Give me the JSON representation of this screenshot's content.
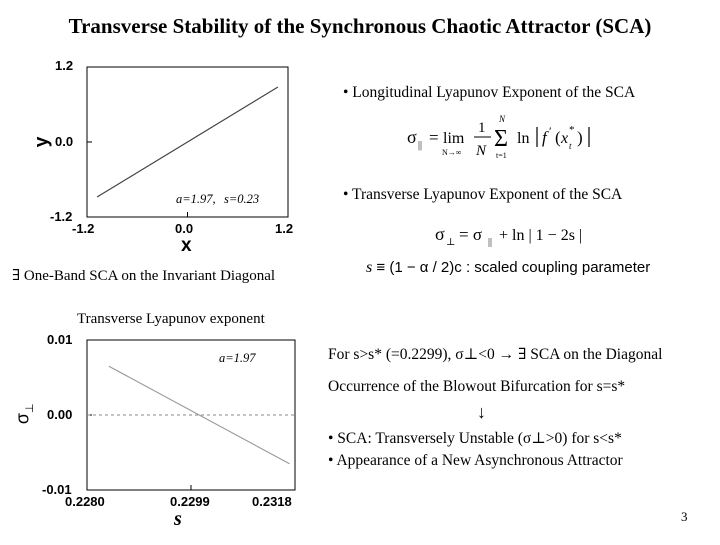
{
  "slide": {
    "title": "Transverse Stability of the Synchronous Chaotic Attractor (SCA)",
    "page_number": "3"
  },
  "bullets": {
    "longitudinal": "• Longitudinal Lyapunov Exponent of the SCA",
    "transverse": "• Transverse Lyapunov Exponent of the SCA"
  },
  "formulas": {
    "sigma_par_lhs": "σ",
    "sigma_par_sub": "||",
    "lim_text": "lim",
    "lim_sub": "N→∞",
    "frac_num": "1",
    "frac_den": "N",
    "sum_sym": "Σ",
    "sum_top": "N",
    "sum_bot": "t=1",
    "ln_text": "ln",
    "f_text": "f",
    "f_prime": "′",
    "xt_text": "x",
    "xt_sup": "*",
    "xt_sub": "t",
    "sigma_perp_lhs": "σ",
    "sigma_perp_sub": "⊥",
    "sigma_perp_rhs_eq": "= σ",
    "sigma_perp_rhs_sub": "||",
    "sigma_perp_tail": "+ ln | 1 − 2s |",
    "s_def_s": "s",
    "s_def_mid": "≡ (1 − α / 2)c :",
    "s_def_desc": "scaled coupling parameter"
  },
  "plot1": {
    "annotation_alpha": "a=1.97,",
    "annotation_s": "s=0.23",
    "xlabel": "x",
    "ylabel": "y",
    "xticks": [
      "-1.2",
      "0.0",
      "1.2"
    ],
    "yticks": [
      "1.2",
      "0.0",
      "-1.2"
    ]
  },
  "band_note": "∃ One-Band SCA on the Invariant Diagonal",
  "plot2": {
    "title": "Transverse Lyapunov exponent",
    "annotation": "a=1.97",
    "xlabel": "s",
    "ylabel_sym": "σ",
    "ylabel_sub": "⊥",
    "xticks": [
      "0.2280",
      "0.2299",
      "0.2318"
    ],
    "yticks": [
      "0.01",
      "0.00",
      "-0.01"
    ]
  },
  "right_text": {
    "line1": "For s>s* (=0.2299), σ⊥<0 → ∃ SCA on the Diagonal",
    "line2": "Occurrence of the Blowout Bifurcation for s=s*",
    "arrow": "↓",
    "line3": "• SCA: Transversely Unstable (σ⊥>0) for s<s*",
    "line4": "• Appearance of a New Asynchronous Attractor"
  },
  "chart_data": [
    {
      "type": "line",
      "xlabel": "x",
      "ylabel": "y",
      "xlim": [
        -1.2,
        1.2
      ],
      "ylim": [
        -1.2,
        1.2
      ],
      "grid": false,
      "series": [
        {
          "x": [
            -1.08,
            1.08
          ],
          "y": [
            -0.88,
            0.88
          ]
        }
      ]
    },
    {
      "type": "line",
      "title": "Transverse Lyapunov exponent",
      "xlabel": "s",
      "ylabel": "σ⊥",
      "xlim": [
        0.228,
        0.2318
      ],
      "ylim": [
        -0.01,
        0.01
      ],
      "grid": false,
      "series": [
        {
          "x": [
            0.2284,
            0.2317
          ],
          "y": [
            0.0065,
            -0.0065
          ]
        }
      ],
      "reference_line": {
        "y": 0.0,
        "style": "dashed"
      }
    }
  ]
}
